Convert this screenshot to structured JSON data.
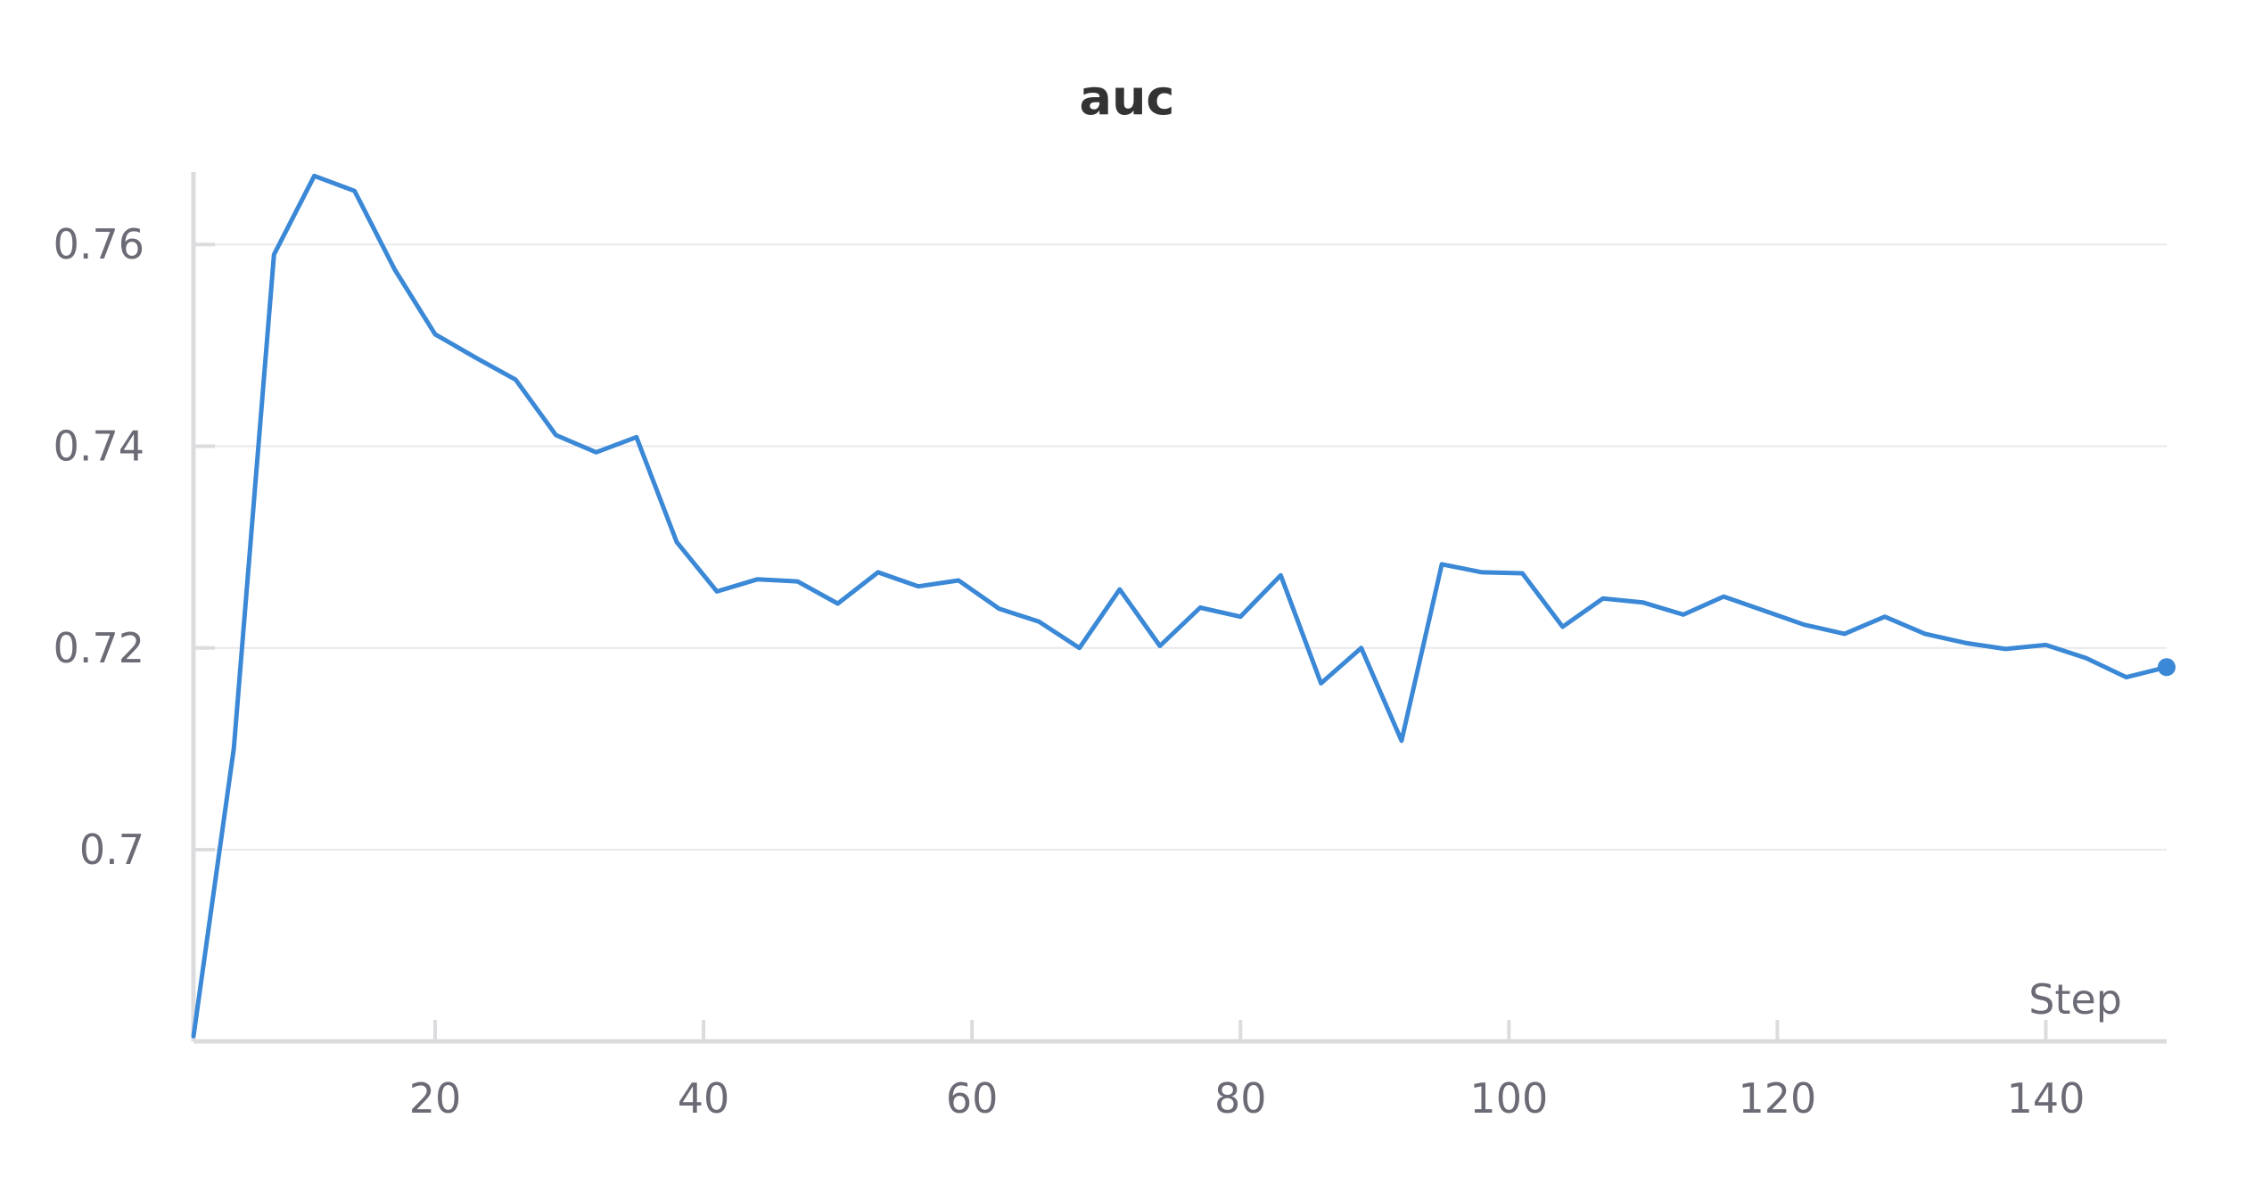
{
  "chart_data": {
    "type": "line",
    "title": "auc",
    "xlabel": "Step",
    "ylabel": "",
    "xlim": [
      2,
      149
    ],
    "ylim": [
      0.681,
      0.767
    ],
    "x_ticks": [
      20,
      40,
      60,
      80,
      100,
      120,
      140
    ],
    "y_ticks": [
      0.7,
      0.72,
      0.74,
      0.76
    ],
    "y_tick_labels": [
      "0.7",
      "0.72",
      "0.74",
      "0.76"
    ],
    "grid": true,
    "legend": "none",
    "series": [
      {
        "color": "#3a88d6",
        "end_marker": true,
        "x": [
          2,
          5,
          8,
          11,
          14,
          17,
          20,
          23,
          26,
          29,
          32,
          35,
          38,
          41,
          44,
          47,
          50,
          53,
          56,
          59,
          62,
          65,
          68,
          71,
          74,
          77,
          80,
          83,
          86,
          89,
          92,
          95,
          98,
          101,
          104,
          107,
          110,
          113,
          116,
          119,
          122,
          125,
          128,
          131,
          134,
          137,
          140,
          143,
          146,
          149
        ],
        "y": [
          0.6815,
          0.71,
          0.759,
          0.7668,
          0.7653,
          0.7575,
          0.7511,
          0.7488,
          0.7466,
          0.7411,
          0.7394,
          0.7409,
          0.7305,
          0.7256,
          0.7268,
          0.7266,
          0.7244,
          0.7275,
          0.7261,
          0.7267,
          0.7239,
          0.7226,
          0.72,
          0.7258,
          0.7202,
          0.724,
          0.7231,
          0.7272,
          0.7165,
          0.72,
          0.7108,
          0.7283,
          0.7275,
          0.7274,
          0.7221,
          0.7249,
          0.7245,
          0.7233,
          0.7251,
          0.7237,
          0.7223,
          0.7214,
          0.7231,
          0.7214,
          0.7205,
          0.7199,
          0.7203,
          0.719,
          0.7171,
          0.7181
        ]
      }
    ]
  }
}
